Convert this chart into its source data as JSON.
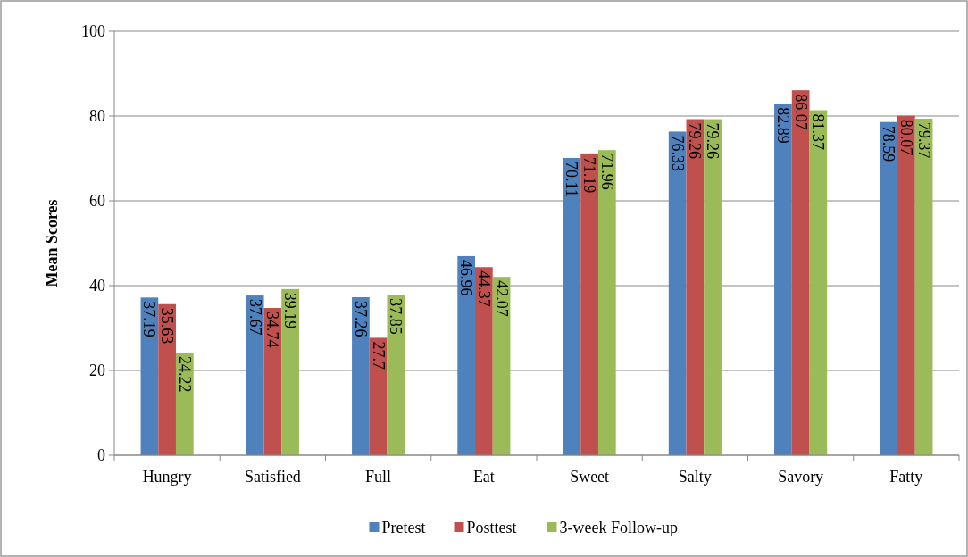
{
  "chart_data": {
    "type": "bar",
    "ylabel": "Mean Scores",
    "categories": [
      "Hungry",
      "Satisfied",
      "Full",
      "Eat",
      "Sweet",
      "Salty",
      "Savory",
      "Fatty"
    ],
    "series": [
      {
        "name": "Pretest",
        "color": "#4f81bd",
        "values": [
          37.19,
          37.67,
          37.26,
          46.96,
          70.11,
          76.33,
          82.89,
          78.59
        ]
      },
      {
        "name": "Posttest",
        "color": "#c0504d",
        "values": [
          35.63,
          34.74,
          27.7,
          44.37,
          71.19,
          79.26,
          86.07,
          80.07
        ]
      },
      {
        "name": "3-week Follow-up",
        "color": "#9bbb59",
        "values": [
          24.22,
          39.19,
          37.85,
          42.07,
          71.96,
          79.26,
          81.37,
          79.37
        ]
      }
    ],
    "ylim": [
      0,
      100
    ],
    "yticks": [
      0,
      20,
      40,
      60,
      80,
      100
    ],
    "grid": "y",
    "legend": "bottom",
    "data_labels": true
  }
}
